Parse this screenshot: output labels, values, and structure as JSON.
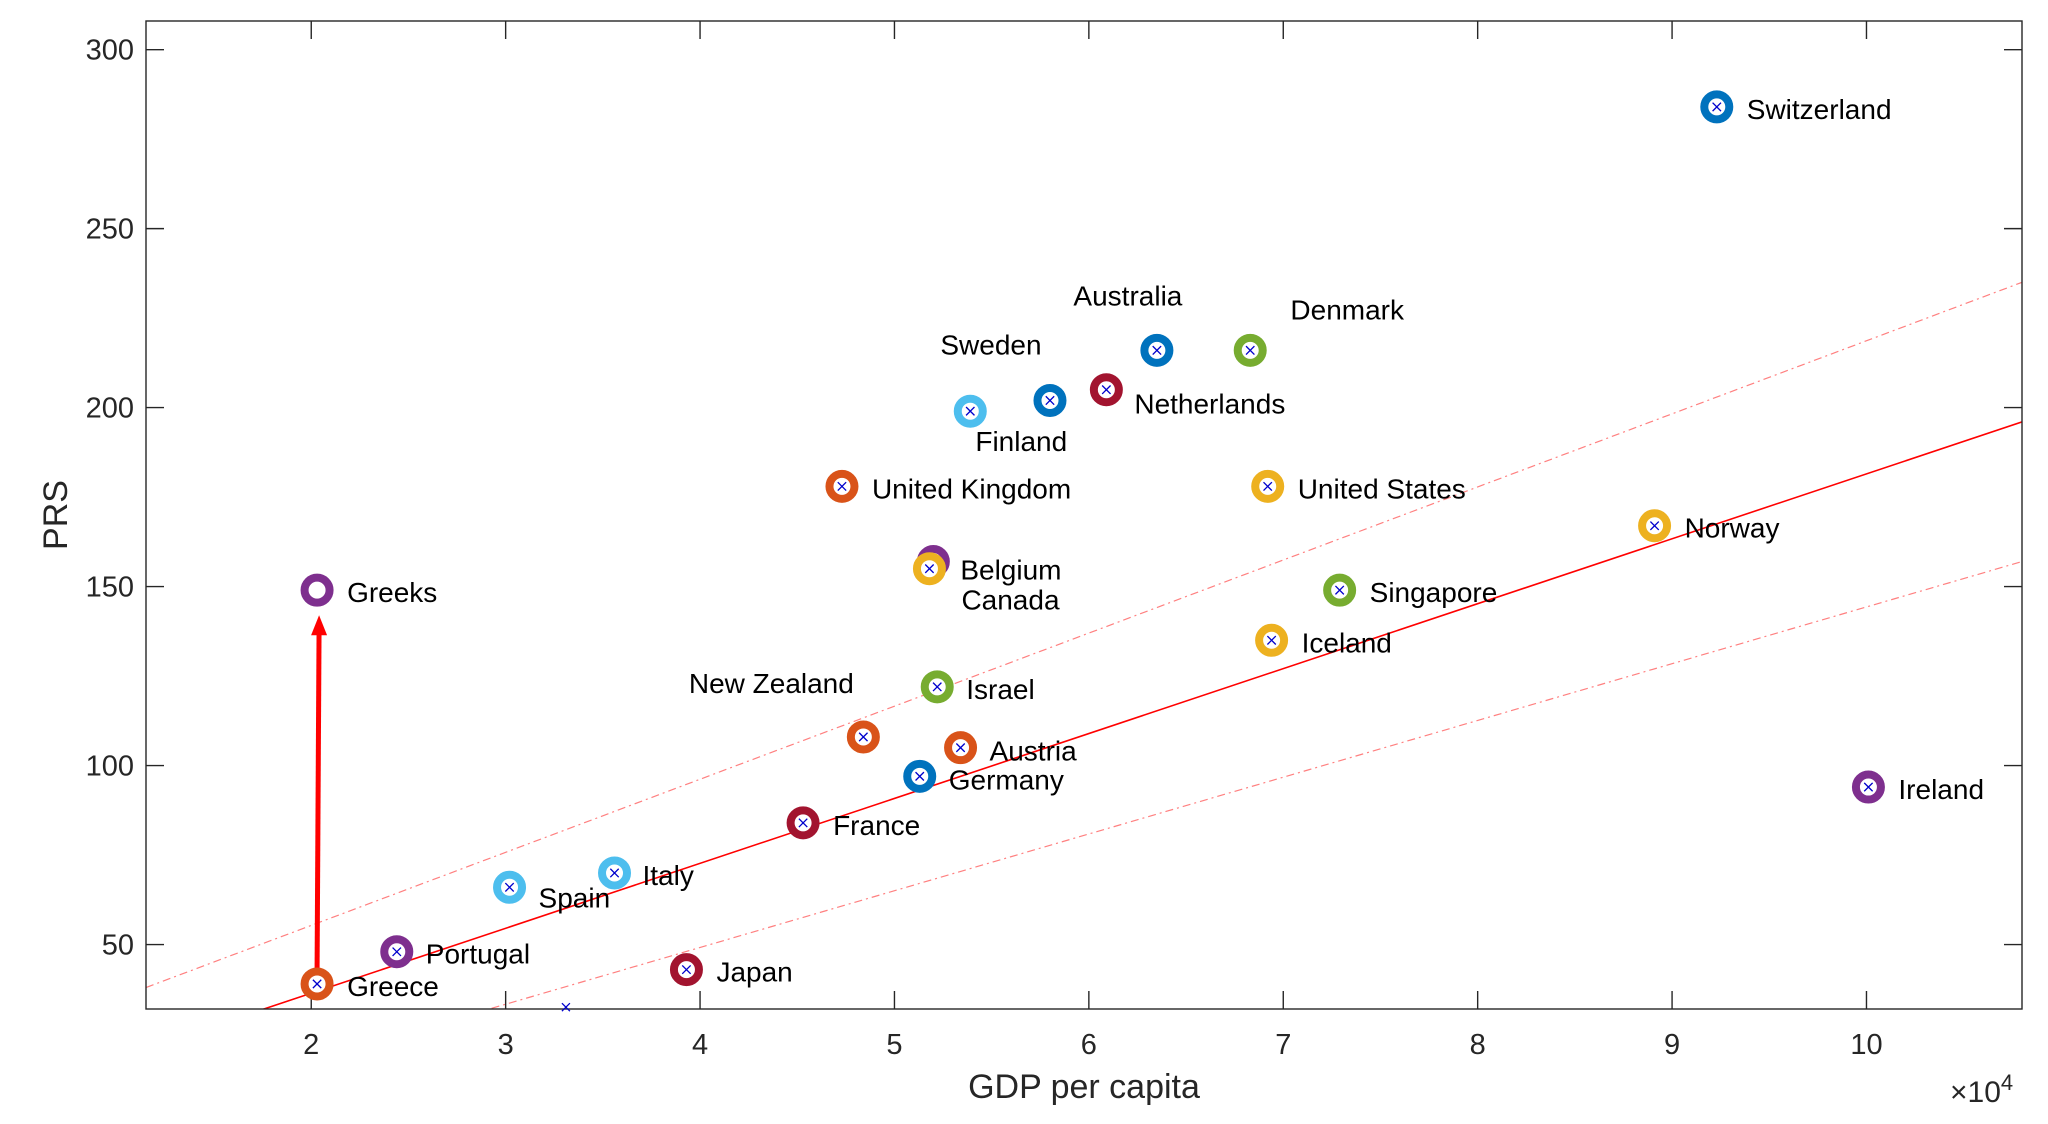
{
  "chart_data": {
    "type": "scatter",
    "title": "",
    "xlabel": "GDP per capita",
    "ylabel": "PRS",
    "x_exponent_label": "×10",
    "x_exponent_power": "4",
    "x_scale": 10000,
    "xlim": [
      11500,
      108000
    ],
    "ylim": [
      32,
      308
    ],
    "xticks": [
      20000,
      30000,
      40000,
      50000,
      60000,
      70000,
      80000,
      90000,
      100000
    ],
    "xtick_labels": [
      "2",
      "3",
      "4",
      "5",
      "6",
      "7",
      "8",
      "9",
      "10"
    ],
    "yticks": [
      50,
      100,
      150,
      200,
      250,
      300
    ],
    "ytick_labels": [
      "50",
      "100",
      "150",
      "200",
      "250",
      "300"
    ],
    "grid": false,
    "points": [
      {
        "name": "Switzerland",
        "x": 92300,
        "y": 284,
        "color": "#0072BD"
      },
      {
        "name": "Australia",
        "x": 63500,
        "y": 216,
        "color": "#0072BD"
      },
      {
        "name": "Denmark",
        "x": 68300,
        "y": 216,
        "color": "#77AC30"
      },
      {
        "name": "Sweden",
        "x": 58000,
        "y": 202,
        "color": "#0072BD"
      },
      {
        "name": "Netherlands",
        "x": 60900,
        "y": 205,
        "color": "#A2142F"
      },
      {
        "name": "Finland",
        "x": 53900,
        "y": 199,
        "color": "#4DBEEE"
      },
      {
        "name": "United Kingdom",
        "x": 47300,
        "y": 178,
        "color": "#D95319"
      },
      {
        "name": "United States",
        "x": 69200,
        "y": 178,
        "color": "#EDB120"
      },
      {
        "name": "Norway",
        "x": 89100,
        "y": 167,
        "color": "#EDB120"
      },
      {
        "name": "Belgium",
        "x": 52000,
        "y": 157,
        "color": "#7E2F8E"
      },
      {
        "name": "Canada",
        "x": 51800,
        "y": 155,
        "color": "#EDB120"
      },
      {
        "name": "Singapore",
        "x": 72900,
        "y": 149,
        "color": "#77AC30"
      },
      {
        "name": "Iceland",
        "x": 69400,
        "y": 135,
        "color": "#EDB120"
      },
      {
        "name": "Israel",
        "x": 52200,
        "y": 122,
        "color": "#77AC30"
      },
      {
        "name": "New Zealand",
        "x": 48400,
        "y": 108,
        "color": "#D95319"
      },
      {
        "name": "Austria",
        "x": 53400,
        "y": 105,
        "color": "#D95319"
      },
      {
        "name": "Germany",
        "x": 51300,
        "y": 97,
        "color": "#0072BD"
      },
      {
        "name": "Ireland",
        "x": 100100,
        "y": 94,
        "color": "#7E2F8E"
      },
      {
        "name": "France",
        "x": 45300,
        "y": 84,
        "color": "#A2142F"
      },
      {
        "name": "Italy",
        "x": 35600,
        "y": 70,
        "color": "#4DBEEE"
      },
      {
        "name": "Spain",
        "x": 30200,
        "y": 66,
        "color": "#4DBEEE"
      },
      {
        "name": "Portugal",
        "x": 24400,
        "y": 48,
        "color": "#7E2F8E"
      },
      {
        "name": "Japan",
        "x": 39300,
        "y": 43,
        "color": "#A2142F"
      },
      {
        "name": "Greece",
        "x": 20300,
        "y": 39,
        "color": "#D95319"
      },
      {
        "name": "Greeks",
        "x": 20300,
        "y": 149,
        "color": "#7E2F8E",
        "hollow": true
      }
    ],
    "stray_marker": {
      "x": 33100,
      "y": 32.5,
      "color": "#0000CC"
    },
    "fit_line": {
      "x1": 11500,
      "y1": 21,
      "x2": 108000,
      "y2": 196,
      "color": "#FF0000"
    },
    "upper_band": {
      "x1": 11500,
      "y1": 38,
      "x2": 108000,
      "y2": 235,
      "color": "#FF8080"
    },
    "lower_band": {
      "x1": 11500,
      "y1": 4,
      "x2": 108000,
      "y2": 157,
      "color": "#FF8080"
    },
    "arrow": {
      "x": 20300,
      "y_from": 43,
      "y_to": 142,
      "color": "#FF0000"
    }
  }
}
